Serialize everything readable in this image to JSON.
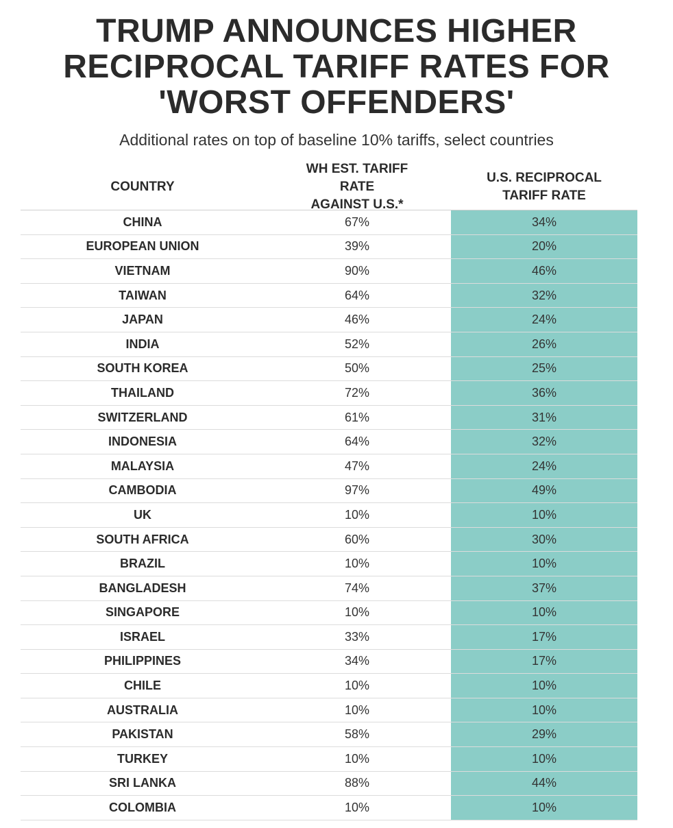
{
  "title_lines": [
    "TRUMP ANNOUNCES HIGHER",
    "RECIPROCAL TARIFF RATES FOR",
    "'WORST OFFENDERS'"
  ],
  "subtitle": "Additional rates on top of baseline 10% tariffs, select countries",
  "colors": {
    "highlight_column": "#8bcdc7",
    "text": "#333333",
    "background": "#ffffff"
  },
  "chart_data": {
    "type": "table",
    "title": "TRUMP ANNOUNCES HIGHER RECIPROCAL TARIFF RATES FOR 'WORST OFFENDERS'",
    "subtitle": "Additional rates on top of baseline 10% tariffs, select countries",
    "columns": [
      {
        "key": "country",
        "header_lines": [
          "COUNTRY"
        ]
      },
      {
        "key": "wh_rate",
        "header_lines": [
          "WH EST. TARIFF RATE",
          "AGAINST U.S.*"
        ]
      },
      {
        "key": "us_rate",
        "header_lines": [
          "U.S. RECIPROCAL",
          "TARIFF RATE"
        ]
      }
    ],
    "rows": [
      {
        "country": "CHINA",
        "wh_rate": "67%",
        "us_rate": "34%"
      },
      {
        "country": "EUROPEAN UNION",
        "wh_rate": "39%",
        "us_rate": "20%"
      },
      {
        "country": "VIETNAM",
        "wh_rate": "90%",
        "us_rate": "46%"
      },
      {
        "country": "TAIWAN",
        "wh_rate": "64%",
        "us_rate": "32%"
      },
      {
        "country": "JAPAN",
        "wh_rate": "46%",
        "us_rate": "24%"
      },
      {
        "country": "INDIA",
        "wh_rate": "52%",
        "us_rate": "26%"
      },
      {
        "country": "SOUTH KOREA",
        "wh_rate": "50%",
        "us_rate": "25%"
      },
      {
        "country": "THAILAND",
        "wh_rate": "72%",
        "us_rate": "36%"
      },
      {
        "country": "SWITZERLAND",
        "wh_rate": "61%",
        "us_rate": "31%"
      },
      {
        "country": "INDONESIA",
        "wh_rate": "64%",
        "us_rate": "32%"
      },
      {
        "country": "MALAYSIA",
        "wh_rate": "47%",
        "us_rate": "24%"
      },
      {
        "country": "CAMBODIA",
        "wh_rate": "97%",
        "us_rate": "49%"
      },
      {
        "country": "UK",
        "wh_rate": "10%",
        "us_rate": "10%"
      },
      {
        "country": "SOUTH AFRICA",
        "wh_rate": "60%",
        "us_rate": "30%"
      },
      {
        "country": "BRAZIL",
        "wh_rate": "10%",
        "us_rate": "10%"
      },
      {
        "country": "BANGLADESH",
        "wh_rate": "74%",
        "us_rate": "37%"
      },
      {
        "country": "SINGAPORE",
        "wh_rate": "10%",
        "us_rate": "10%"
      },
      {
        "country": "ISRAEL",
        "wh_rate": "33%",
        "us_rate": "17%"
      },
      {
        "country": "PHILIPPINES",
        "wh_rate": "34%",
        "us_rate": "17%"
      },
      {
        "country": "CHILE",
        "wh_rate": "10%",
        "us_rate": "10%"
      },
      {
        "country": "AUSTRALIA",
        "wh_rate": "10%",
        "us_rate": "10%"
      },
      {
        "country": "PAKISTAN",
        "wh_rate": "58%",
        "us_rate": "29%"
      },
      {
        "country": "TURKEY",
        "wh_rate": "10%",
        "us_rate": "10%"
      },
      {
        "country": "SRI LANKA",
        "wh_rate": "88%",
        "us_rate": "44%"
      },
      {
        "country": "COLOMBIA",
        "wh_rate": "10%",
        "us_rate": "10%"
      }
    ]
  }
}
